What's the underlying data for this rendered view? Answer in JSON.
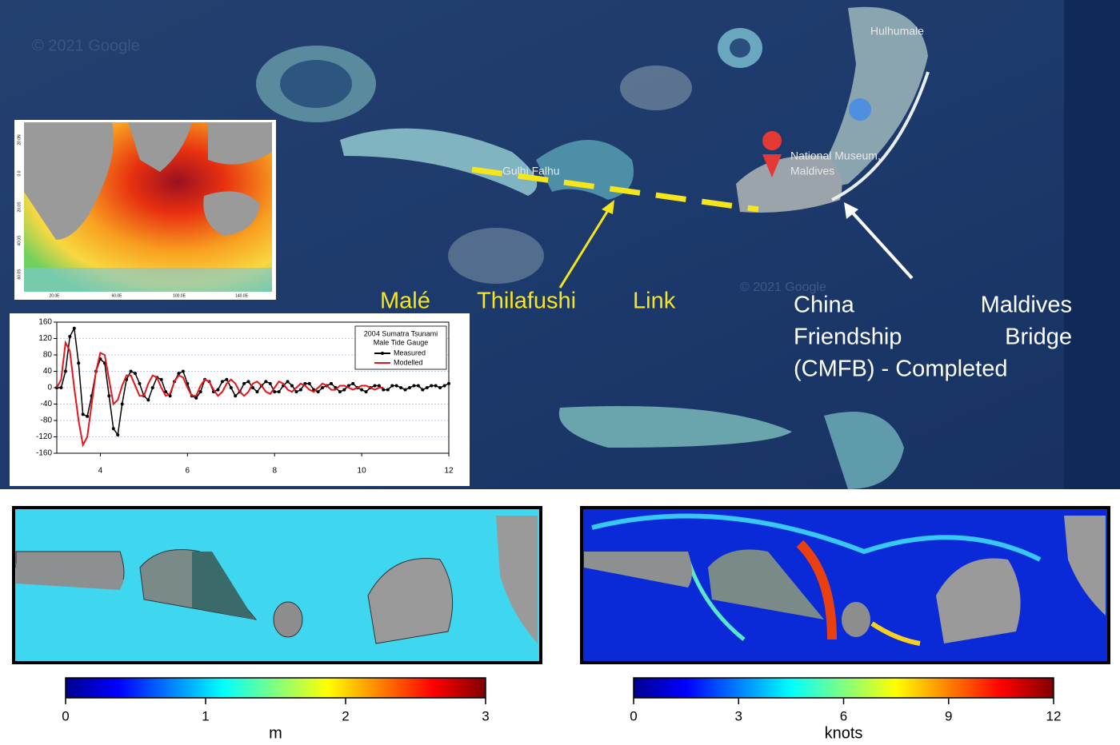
{
  "map": {
    "watermark": "© 2021 Google",
    "places": {
      "hulhumale": "Hulhumale",
      "gulhi_falhu": "Gulhi Falhu",
      "museum": [
        "National Museum,",
        "Maldives"
      ]
    },
    "link_labels": [
      "Malé",
      "Thilafushi",
      "Link"
    ],
    "bridge_label": [
      "China",
      "Maldives",
      "Friendship",
      "Bridge",
      "(CMFB) - Completed"
    ],
    "inset_xticks": [
      "20.0E",
      "60.0E",
      "100.0E",
      "140.0E"
    ],
    "inset_yticks": [
      "20.0N",
      "0.0",
      "20.0S",
      "40.0S",
      "60.0S"
    ]
  },
  "chart_data": {
    "type": "line",
    "legend_title": [
      "2004 Sumatra Tsunami",
      "Male Tide Gauge"
    ],
    "x": [
      3.0,
      3.1,
      3.2,
      3.3,
      3.4,
      3.5,
      3.6,
      3.7,
      3.8,
      3.9,
      4.0,
      4.1,
      4.2,
      4.3,
      4.4,
      4.5,
      4.6,
      4.7,
      4.8,
      4.9,
      5.0,
      5.1,
      5.2,
      5.3,
      5.4,
      5.5,
      5.6,
      5.7,
      5.8,
      5.9,
      6.0,
      6.1,
      6.2,
      6.3,
      6.4,
      6.5,
      6.6,
      6.7,
      6.8,
      6.9,
      7.0,
      7.1,
      7.2,
      7.3,
      7.4,
      7.5,
      7.6,
      7.7,
      7.8,
      7.9,
      8.0,
      8.1,
      8.2,
      8.3,
      8.4,
      8.5,
      8.6,
      8.7,
      8.8,
      8.9,
      9.0,
      9.1,
      9.2,
      9.3,
      9.4,
      9.5,
      9.6,
      9.7,
      9.8,
      9.9,
      10.0,
      10.1,
      10.2,
      10.3,
      10.4,
      10.5,
      10.6,
      10.7,
      10.8,
      10.9,
      11.0,
      11.1,
      11.2,
      11.3,
      11.4,
      11.5,
      11.6,
      11.7,
      11.8,
      11.9,
      12.0
    ],
    "series": [
      {
        "name": "Measured",
        "color": "#000000",
        "markers": true,
        "values": [
          0,
          0,
          40,
          125,
          145,
          60,
          -65,
          -70,
          -20,
          40,
          70,
          60,
          -20,
          -100,
          -115,
          -40,
          20,
          40,
          35,
          10,
          -20,
          -30,
          0,
          25,
          20,
          -10,
          -20,
          15,
          35,
          40,
          10,
          -20,
          -25,
          -10,
          20,
          15,
          -10,
          -5,
          15,
          20,
          0,
          -20,
          -10,
          10,
          15,
          0,
          -10,
          5,
          15,
          10,
          -10,
          -10,
          5,
          15,
          5,
          -10,
          -5,
          10,
          10,
          -5,
          -10,
          0,
          5,
          10,
          0,
          -10,
          -5,
          5,
          10,
          0,
          -5,
          -10,
          0,
          5,
          5,
          -5,
          -5,
          5,
          5,
          0,
          -5,
          0,
          5,
          5,
          -5,
          0,
          5,
          5,
          0,
          5,
          10
        ]
      },
      {
        "name": "Modelled",
        "color": "#e8141b",
        "markers": false,
        "values": [
          0,
          20,
          110,
          90,
          0,
          -80,
          -140,
          -120,
          -40,
          40,
          85,
          80,
          20,
          -40,
          -30,
          5,
          30,
          30,
          5,
          -20,
          -20,
          10,
          30,
          25,
          0,
          -20,
          -15,
          15,
          30,
          25,
          0,
          -20,
          -20,
          5,
          20,
          15,
          -5,
          -20,
          -10,
          10,
          20,
          10,
          -10,
          -20,
          -10,
          10,
          15,
          5,
          -10,
          -15,
          0,
          15,
          10,
          -5,
          -10,
          0,
          10,
          5,
          -5,
          -10,
          0,
          10,
          5,
          -5,
          -5,
          5,
          5,
          0,
          -5,
          0,
          5,
          5,
          0,
          -5,
          0,
          0,
          null,
          null,
          null,
          null,
          null,
          null,
          null,
          null,
          null,
          null,
          null,
          null,
          null,
          null,
          null
        ]
      }
    ],
    "xlim": [
      3,
      12
    ],
    "xticks": [
      4,
      6,
      8,
      10,
      12
    ],
    "ylim": [
      -160,
      160
    ],
    "yticks": [
      160,
      120,
      80,
      40,
      0,
      -40,
      -80,
      -120,
      -160
    ],
    "grid": true
  },
  "colorbars": [
    {
      "label": "m",
      "lim": [
        0,
        3
      ],
      "ticks": [
        0,
        1,
        2,
        3
      ]
    },
    {
      "label": "knots",
      "lim": [
        0,
        12
      ],
      "ticks": [
        0,
        3,
        6,
        9,
        12
      ]
    }
  ]
}
